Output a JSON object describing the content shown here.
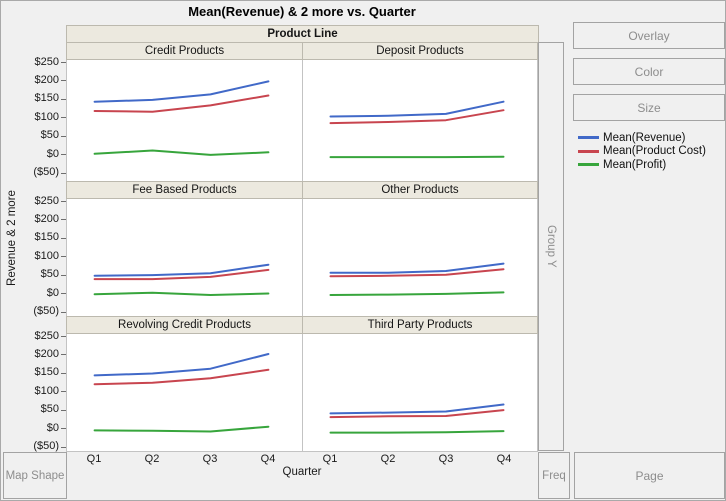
{
  "title": "Mean(Revenue) & 2 more vs. Quarter",
  "drop_zones": {
    "overlay": "Overlay",
    "color": "Color",
    "size": "Size",
    "group_y": "Group Y",
    "map_shape": "Map Shape",
    "freq": "Freq",
    "page": "Page"
  },
  "chart_data": {
    "type": "line",
    "title": "Mean(Revenue) & 2 more vs. Quarter",
    "facet_column_header": "Product Line",
    "x_axis": {
      "title": "Quarter",
      "ticks": [
        "Q1",
        "Q2",
        "Q3",
        "Q4"
      ]
    },
    "y_axis": {
      "title": "Revenue & 2 more",
      "tick_labels": [
        "$250",
        "$200",
        "$150",
        "$100",
        "$50",
        "$0",
        "($50)"
      ],
      "tick_values": [
        250,
        200,
        150,
        100,
        50,
        0,
        -50
      ],
      "min": -50,
      "max": 250
    },
    "series": [
      {
        "name": "Mean(Revenue)",
        "color": "#4169C8"
      },
      {
        "name": "Mean(Product Cost)",
        "color": "#C8454F"
      },
      {
        "name": "Mean(Profit)",
        "color": "#37A53C"
      }
    ],
    "facets": [
      {
        "label": "Credit Products",
        "values": [
          [
            145,
            150,
            165,
            200
          ],
          [
            120,
            118,
            135,
            162
          ],
          [
            4,
            13,
            1,
            8
          ]
        ]
      },
      {
        "label": "Deposit Products",
        "values": [
          [
            105,
            107,
            112,
            145
          ],
          [
            87,
            90,
            95,
            122
          ],
          [
            -5,
            -5,
            -5,
            -4
          ]
        ]
      },
      {
        "label": "Fee Based Products",
        "values": [
          [
            50,
            52,
            57,
            80
          ],
          [
            41,
            41,
            47,
            66
          ],
          [
            0,
            4,
            -2,
            2
          ]
        ]
      },
      {
        "label": "Other Products",
        "values": [
          [
            58,
            58,
            63,
            83
          ],
          [
            49,
            50,
            53,
            68
          ],
          [
            -2,
            -1,
            1,
            5
          ]
        ]
      },
      {
        "label": "Revolving Credit Products",
        "values": [
          [
            146,
            151,
            164,
            204
          ],
          [
            122,
            126,
            138,
            161
          ],
          [
            -3,
            -4,
            -6,
            7
          ]
        ]
      },
      {
        "label": "Third Party Products",
        "values": [
          [
            43,
            45,
            48,
            67
          ],
          [
            33,
            35,
            36,
            52
          ],
          [
            -9,
            -9,
            -8,
            -5
          ]
        ]
      }
    ],
    "legend_position": "right",
    "grid": false
  }
}
